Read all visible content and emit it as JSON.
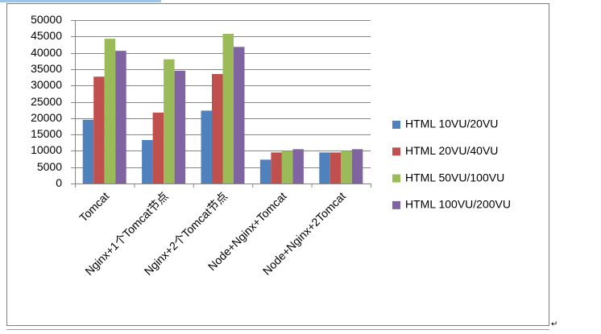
{
  "chart_data": {
    "type": "bar",
    "categories": [
      "Tomcat",
      "Nginx+1个Tomcat节点",
      "Nginx+2个Tomcat节点",
      "Node+Nginx+Tomcat",
      "Node+Nginx+2Tomcat"
    ],
    "series": [
      {
        "name": "HTML 10VU/20VU",
        "color": "#4f81bd",
        "values": [
          19500,
          13300,
          22300,
          7300,
          9500
        ]
      },
      {
        "name": "HTML 20VU/40VU",
        "color": "#c0504d",
        "values": [
          32700,
          21700,
          33500,
          9500,
          9500
        ]
      },
      {
        "name": "HTML 50VU/100VU",
        "color": "#9bbb59",
        "values": [
          44300,
          38000,
          45800,
          9900,
          9900
        ]
      },
      {
        "name": "HTML 100VU/200VU",
        "color": "#8064a2",
        "values": [
          40600,
          34500,
          41800,
          10500,
          10500
        ]
      }
    ],
    "ylim": [
      0,
      50000
    ],
    "yticks": [
      0,
      5000,
      10000,
      15000,
      20000,
      25000,
      30000,
      35000,
      40000,
      45000,
      50000
    ],
    "grid": true,
    "legend": "right"
  },
  "paragraph_mark": "↵"
}
